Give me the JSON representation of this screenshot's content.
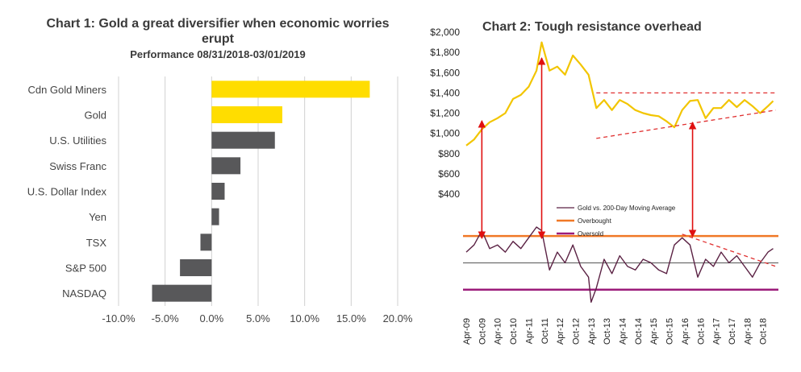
{
  "chart_data": [
    {
      "type": "bar",
      "orientation": "horizontal",
      "title": "Chart 1: Gold a great diversifier when economic worries erupt",
      "subtitle": "Performance 08/31/2018-03/01/2019",
      "categories": [
        "Cdn Gold Miners",
        "Gold",
        "U.S. Utilities",
        "Swiss Franc",
        "U.S. Dollar Index",
        "Yen",
        "TSX",
        "S&P 500",
        "NASDAQ"
      ],
      "values": [
        17.0,
        7.6,
        6.8,
        3.1,
        1.4,
        0.8,
        -1.2,
        -3.4,
        -6.4
      ],
      "colors": [
        "#ffdd00",
        "#ffdd00",
        "#58585a",
        "#58585a",
        "#58585a",
        "#58585a",
        "#58585a",
        "#58585a",
        "#58585a"
      ],
      "xlim": [
        -10,
        20
      ],
      "xticks": [
        "-10.0%",
        "-5.0%",
        "0.0%",
        "5.0%",
        "10.0%",
        "15.0%",
        "20.0%"
      ],
      "grid": true
    },
    {
      "type": "line",
      "title": "Chart 2: Tough resistance overhead",
      "upper_panel": {
        "series": [
          {
            "color": "#f2c500",
            "x": [
              "2009-04",
              "2009-07",
              "2009-10",
              "2010-01",
              "2010-04",
              "2010-07",
              "2010-10",
              "2011-01",
              "2011-04",
              "2011-07",
              "2011-09",
              "2011-12",
              "2012-03",
              "2012-06",
              "2012-09",
              "2012-12",
              "2013-03",
              "2013-06",
              "2013-09",
              "2013-12",
              "2014-03",
              "2014-06",
              "2014-09",
              "2014-12",
              "2015-03",
              "2015-06",
              "2015-09",
              "2015-12",
              "2016-03",
              "2016-06",
              "2016-09",
              "2016-12",
              "2017-03",
              "2017-06",
              "2017-09",
              "2017-12",
              "2018-03",
              "2018-06",
              "2018-09",
              "2018-12",
              "2019-02"
            ],
            "y": [
              880,
              940,
              1040,
              1110,
              1150,
              1200,
              1340,
              1380,
              1460,
              1620,
              1900,
              1620,
              1660,
              1580,
              1770,
              1680,
              1580,
              1250,
              1330,
              1230,
              1330,
              1290,
              1230,
              1200,
              1180,
              1170,
              1120,
              1060,
              1230,
              1320,
              1330,
              1150,
              1250,
              1250,
              1330,
              1260,
              1330,
              1270,
              1200,
              1270,
              1320
            ]
          }
        ],
        "ylim": [
          400,
          2000
        ],
        "yticks": [
          "$400",
          "$600",
          "$800",
          "$1,000",
          "$1,200",
          "$1,400",
          "$1,600",
          "$1,800",
          "$2,000"
        ],
        "resistance_line": {
          "x": [
            "2013-06",
            "2019-03"
          ],
          "y": [
            1400,
            1400
          ],
          "color": "#e03030",
          "dashed": true
        },
        "support_line": {
          "x": [
            "2013-06",
            "2019-03"
          ],
          "y": [
            950,
            1230
          ],
          "color": "#e03030",
          "dashed": true
        }
      },
      "lower_panel": {
        "legend": [
          "Gold vs. 200-Day Moving Average",
          "Overbought",
          "Oversold"
        ],
        "legend_colors": [
          "#5b2244",
          "#f07826",
          "#9b1b7a"
        ],
        "series_color": "#5b2244",
        "x": [
          "2009-04",
          "2009-07",
          "2009-10",
          "2010-01",
          "2010-04",
          "2010-07",
          "2010-10",
          "2011-01",
          "2011-04",
          "2011-07",
          "2011-09",
          "2011-12",
          "2012-03",
          "2012-06",
          "2012-09",
          "2012-12",
          "2013-03",
          "2013-04",
          "2013-06",
          "2013-09",
          "2013-12",
          "2014-03",
          "2014-06",
          "2014-09",
          "2014-12",
          "2015-03",
          "2015-06",
          "2015-09",
          "2015-12",
          "2016-03",
          "2016-06",
          "2016-09",
          "2016-12",
          "2017-03",
          "2017-06",
          "2017-09",
          "2017-12",
          "2018-03",
          "2018-06",
          "2018-09",
          "2018-12",
          "2019-02"
        ],
        "y": [
          6,
          10,
          18,
          8,
          10,
          6,
          12,
          8,
          14,
          20,
          18,
          -4,
          6,
          0,
          10,
          -2,
          -8,
          -22,
          -14,
          2,
          -6,
          4,
          -2,
          -4,
          2,
          0,
          -4,
          -6,
          10,
          14,
          10,
          -8,
          2,
          -2,
          6,
          0,
          4,
          -2,
          -8,
          0,
          6,
          8
        ],
        "overbought": 15,
        "oversold": -15,
        "zero": 0,
        "ylim": [
          -25,
          20
        ],
        "trend_line": {
          "x": [
            "2016-03",
            "2019-03"
          ],
          "y": [
            16,
            -2
          ],
          "color": "#e03030",
          "dashed": true
        }
      },
      "xticks": [
        "Apr-09",
        "Oct-09",
        "Apr-10",
        "Oct-10",
        "Apr-11",
        "Oct-11",
        "Apr-12",
        "Oct-12",
        "Apr-13",
        "Oct-13",
        "Apr-14",
        "Oct-14",
        "Apr-15",
        "Oct-15",
        "Apr-16",
        "Oct-16",
        "Apr-17",
        "Oct-17",
        "Apr-18",
        "Oct-18"
      ],
      "arrows": [
        {
          "x": "2009-10"
        },
        {
          "x": "2011-09"
        },
        {
          "x": "2016-07"
        }
      ],
      "arrow_color": "#e01010"
    }
  ]
}
